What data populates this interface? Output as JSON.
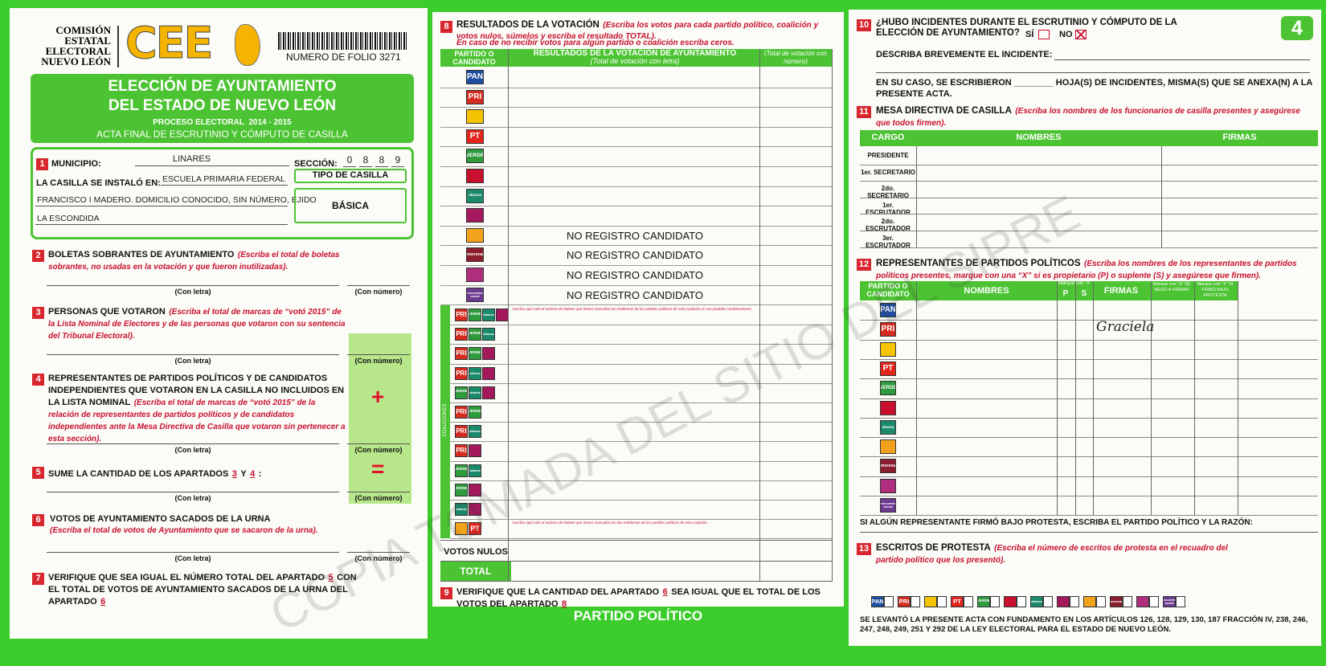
{
  "header": {
    "org_lines": [
      "COMISIÓN",
      "ESTATAL",
      "ELECTORAL",
      "NUEVO LEÓN"
    ],
    "logo": "CEE",
    "folio": "NUMERO DE FOLIO 3271",
    "sheet": "4"
  },
  "banner": {
    "title_lines": [
      "ELECCIÓN DE AYUNTAMIENTO",
      "DEL ESTADO DE NUEVO LEÓN"
    ],
    "process": "PROCESO ELECTORAL  2014 - 2015",
    "act": "ACTA FINAL DE ESCRUTINIO Y CÓMPUTO DE CASILLA"
  },
  "labels": {
    "con_letra": "(Con letra)",
    "con_numero": "(Con número)"
  },
  "s1": {
    "num": "1",
    "municipio_label": "MUNICIPIO:",
    "municipio": "LINARES",
    "seccion_label": "SECCIÓN:",
    "seccion_digits": [
      "0",
      "8",
      "8",
      "9"
    ],
    "installed_label": "LA CASILLA SE INSTALÓ EN:",
    "address_lines": [
      "ESCUELA PRIMARIA FEDERAL",
      "FRANCISCO I MADERO. DOMICILIO CONOCIDO, SIN NÚMERO, EJIDO",
      "LA ESCONDIDA"
    ],
    "tipo_label": "TIPO DE CASILLA",
    "tipo": "BÁSICA"
  },
  "s2": {
    "num": "2",
    "title": "BOLETAS SOBRANTES DE AYUNTAMIENTO",
    "note": "(Escriba el total de boletas sobrantes, no usadas en la votación y que fueron inutilizadas)."
  },
  "s3": {
    "num": "3",
    "title": "PERSONAS QUE VOTARON",
    "note": "(Escriba el total de marcas de “votó 2015” de la Lista Nominal de Electores y de las personas que votaron con su sentencia del Tribunal Electoral)."
  },
  "s4": {
    "num": "4",
    "title": "REPRESENTANTES DE PARTIDOS POLÍTICOS Y DE CANDIDATOS INDEPENDIENTES QUE VOTARON EN LA CASILLA NO INCLUIDOS EN LA LISTA NOMINAL",
    "note": "(Escriba el total de marcas de “votó 2015” de la relación de representantes de partidos políticos y de candidatos independientes ante la Mesa Directiva de Casilla que votaron sin pertenecer a esta sección).",
    "sign": "+"
  },
  "s5": {
    "num": "5",
    "title": "SUME LA CANTIDAD DE LOS APARTADOS",
    "a": "3",
    "y": "Y",
    "b": "4",
    "colon": ":",
    "sign": "="
  },
  "s6": {
    "num": "6",
    "title": "VOTOS DE AYUNTAMIENTO SACADOS DE LA URNA",
    "note": "(Escriba el total de votos de Ayuntamiento que se sacaron de la urna)."
  },
  "s7": {
    "num": "7",
    "text1": "VERIFIQUE QUE SEA IGUAL EL NÚMERO TOTAL DEL APARTADO",
    "a": "5",
    "text2": "CON EL TOTAL DE VOTOS DE AYUNTAMIENTO SACADOS DE LA URNA DEL APARTADO",
    "b": "6"
  },
  "s8": {
    "num": "8",
    "title": "RESULTADOS DE LA VOTACIÓN",
    "note": "(Escriba los votos para cada partido político, coalición y votos nulos, súmelos y escriba el resultado TOTAL).",
    "note2": "En caso de no recibir votos para algún partido o coalición escriba ceros.",
    "col_party": "PARTIDO O CANDIDATO",
    "col_results": "RESULTADOS DE LA VOTACIÓN DE AYUNTAMIENTO",
    "col_letter": "(Total de votación con letra)",
    "col_number": "(Total de votación con número)",
    "rows": [
      {
        "logo": {
          "text": "PAN",
          "color": "#1f4ea1"
        }
      },
      {
        "logo": {
          "text": "PRI",
          "color": "#d52b1e"
        }
      },
      {
        "logo": {
          "color": "#f6c300"
        }
      },
      {
        "logo": {
          "text": "PT",
          "color": "#e3251c"
        }
      },
      {
        "logo": {
          "text": "VERDE",
          "color": "#2e9b3c"
        }
      },
      {
        "logo": {
          "color": "#c8102e"
        }
      },
      {
        "logo": {
          "text": "alianza",
          "color": "#1b8a6b"
        }
      },
      {
        "logo": {
          "color": "#a3195b"
        }
      },
      {
        "logo": {
          "color": "#f3a21b"
        },
        "text": "NO REGISTRO CANDIDATO"
      },
      {
        "logo": {
          "text": "morena",
          "color": "#8b1d2c"
        },
        "text": "NO REGISTRO CANDIDATO"
      },
      {
        "logo": {
          "color": "#b02e7e"
        },
        "text": "NO REGISTRO CANDIDATO"
      },
      {
        "logo": {
          "text": "encuentro social",
          "color": "#6c3a8e"
        },
        "text": "NO REGISTRO CANDIDATO"
      }
    ],
    "coalition_label": "COALICIONES",
    "coalition_note": "Escriba aquí solo el número de boletas que tienen marcados los emblemas de los partidos políticos de esta coalición en sus posibles combinaciones.",
    "coalition_note2": "Escriba aquí solo el número de boletas que tienen marcados los dos emblemas de los partidos políticos de esta coalición.",
    "coalitions": [
      [
        {
          "text": "PRI",
          "color": "#d52b1e"
        },
        {
          "text": "VERDE",
          "color": "#2e9b3c"
        },
        {
          "text": "alianza",
          "color": "#1b8a6b"
        },
        {
          "color": "#a3195b"
        }
      ],
      [
        {
          "text": "PRI",
          "color": "#d52b1e"
        },
        {
          "text": "VERDE",
          "color": "#2e9b3c"
        },
        {
          "text": "alianza",
          "color": "#1b8a6b"
        }
      ],
      [
        {
          "text": "PRI",
          "color": "#d52b1e"
        },
        {
          "text": "VERDE",
          "color": "#2e9b3c"
        },
        {
          "color": "#a3195b"
        }
      ],
      [
        {
          "text": "PRI",
          "color": "#d52b1e"
        },
        {
          "text": "alianza",
          "color": "#1b8a6b"
        },
        {
          "color": "#a3195b"
        }
      ],
      [
        {
          "text": "VERDE",
          "color": "#2e9b3c"
        },
        {
          "text": "alianza",
          "color": "#1b8a6b"
        },
        {
          "color": "#a3195b"
        }
      ],
      [
        {
          "text": "PRI",
          "color": "#d52b1e"
        },
        {
          "text": "VERDE",
          "color": "#2e9b3c"
        }
      ],
      [
        {
          "text": "PRI",
          "color": "#d52b1e"
        },
        {
          "text": "alianza",
          "color": "#1b8a6b"
        }
      ],
      [
        {
          "text": "PRI",
          "color": "#d52b1e"
        },
        {
          "color": "#a3195b"
        }
      ],
      [
        {
          "text": "VERDE",
          "color": "#2e9b3c"
        },
        {
          "text": "alianza",
          "color": "#1b8a6b"
        }
      ],
      [
        {
          "text": "VERDE",
          "color": "#2e9b3c"
        },
        {
          "color": "#a3195b"
        }
      ],
      [
        {
          "text": "alianza",
          "color": "#1b8a6b"
        },
        {
          "color": "#a3195b"
        }
      ],
      [
        {
          "color": "#f3a21b"
        },
        {
          "text": "PT",
          "color": "#e3251c"
        }
      ]
    ],
    "nulos": "VOTOS NULOS",
    "total": "TOTAL"
  },
  "s9": {
    "num": "9",
    "text1": "VERIFIQUE QUE LA CANTIDAD DEL APARTADO",
    "a": "6",
    "text2": "SEA IGUAL QUE EL TOTAL DE LOS VOTOS DEL APARTADO",
    "b": "8"
  },
  "footer": "PARTIDO POLÍTICO",
  "s10": {
    "num": "10",
    "question": "¿HUBO INCIDENTES DURANTE EL ESCRUTINIO Y CÓMPUTO DE LA ELECCIÓN DE AYUNTAMIENTO?",
    "si": "SÍ",
    "no": "NO",
    "describe": "DESCRIBA BREVEMENTE EL INCIDENTE:",
    "sheets": "EN SU CASO, SE ESCRIBIERON ________ HOJA(S) DE INCIDENTES, MISMA(S) QUE SE ANEXA(N) A LA PRESENTE ACTA."
  },
  "s11": {
    "num": "11",
    "title": "MESA DIRECTIVA DE CASILLA",
    "note": "(Escriba los nombres de los funcionarios de casilla presentes y asegúrese que todos firmen).",
    "headers": [
      "CARGO",
      "NOMBRES",
      "FIRMAS"
    ],
    "cargos": [
      "PRESIDENTE",
      "1er. SECRETARIO",
      "2do. SECRETARIO",
      "1er. ESCRUTADOR",
      "2do. ESCRUTADOR",
      "3er. ESCRUTADOR"
    ]
  },
  "s12": {
    "num": "12",
    "title": "REPRESENTANTES DE PARTIDOS POLÍTICOS",
    "note": "(Escriba los nombres de los representantes de partidos políticos presentes, marque con una “X” si es propietario (P) o suplente (S) y asegúrese que firmen).",
    "col_party": "PARTIDO O CANDIDATO",
    "col_names": "NOMBRES",
    "col_mark": "Marque con “X”",
    "col_p": "P",
    "col_s": "S",
    "col_sign": "FIRMAS",
    "col_refused": "Marque con “X” SE NEGÓ A FIRMAR",
    "col_protest": "Marque con “X” SI FIRMÓ BAJO PROTESTA",
    "logos": [
      {
        "text": "PAN",
        "color": "#1f4ea1"
      },
      {
        "text": "PRI",
        "color": "#d52b1e"
      },
      {
        "color": "#f6c300"
      },
      {
        "text": "PT",
        "color": "#e3251c"
      },
      {
        "text": "VERDE",
        "color": "#2e9b3c"
      },
      {
        "color": "#c8102e"
      },
      {
        "text": "alianza",
        "color": "#1b8a6b"
      },
      {
        "color": "#f3a21b"
      },
      {
        "text": "morena",
        "color": "#8b1d2c"
      },
      {
        "color": "#b02e7e"
      },
      {
        "text": "encuentro social",
        "color": "#6c3a8e"
      }
    ],
    "signature": "Graciela",
    "protest": "SI ALGÚN REPRESENTANTE FIRMÓ BAJO PROTESTA, ESCRIBA EL PARTIDO POLÍTICO Y LA RAZÓN:"
  },
  "s13": {
    "num": "13",
    "title": "ESCRITOS DE PROTESTA",
    "note": "(Escriba el número de escritos de protesta en el recuadro del partido político que los presentó).",
    "logos": [
      {
        "text": "PAN",
        "color": "#1f4ea1"
      },
      {
        "text": "PRI",
        "color": "#d52b1e"
      },
      {
        "color": "#f6c300"
      },
      {
        "text": "PT",
        "color": "#e3251c"
      },
      {
        "text": "VERDE",
        "color": "#2e9b3c"
      },
      {
        "color": "#c8102e"
      },
      {
        "text": "alianza",
        "color": "#1b8a6b"
      },
      {
        "color": "#a3195b"
      },
      {
        "color": "#f3a21b"
      },
      {
        "text": "morena",
        "color": "#8b1d2c"
      },
      {
        "color": "#b02e7e"
      },
      {
        "text": "encuentro social",
        "color": "#6c3a8e"
      }
    ],
    "legal": "SE LEVANTÓ LA PRESENTE ACTA CON FUNDAMENTO EN LOS ARTÍCULOS 126, 128, 129, 130, 187 FRACCIÓN IV, 238, 246, 247, 248, 249, 251 Y 292 DE LA LEY ELECTORAL PARA EL ESTADO DE NUEVO LEÓN."
  },
  "watermark": "COPIA TOMADA DEL SITIO DEL SIPRE"
}
